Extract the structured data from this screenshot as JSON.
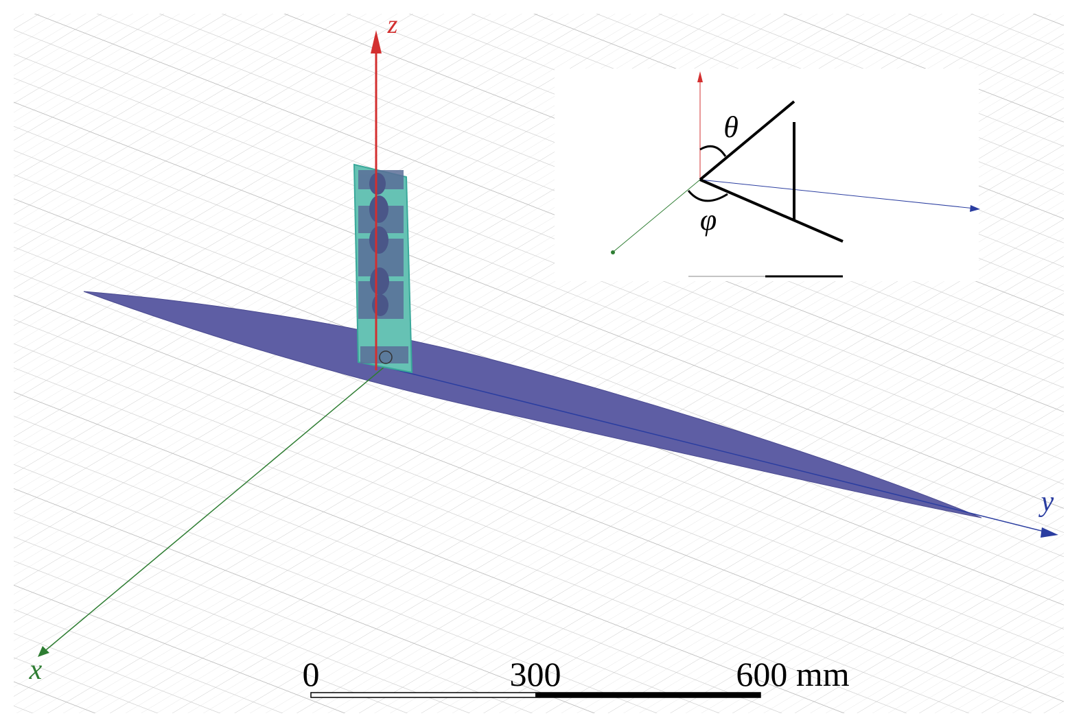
{
  "axes": {
    "z": "z",
    "x": "x",
    "y": "y"
  },
  "inset": {
    "theta": "θ",
    "phi": "φ"
  },
  "scale_bar": {
    "labels": [
      "0",
      "300",
      "600 mm"
    ]
  }
}
